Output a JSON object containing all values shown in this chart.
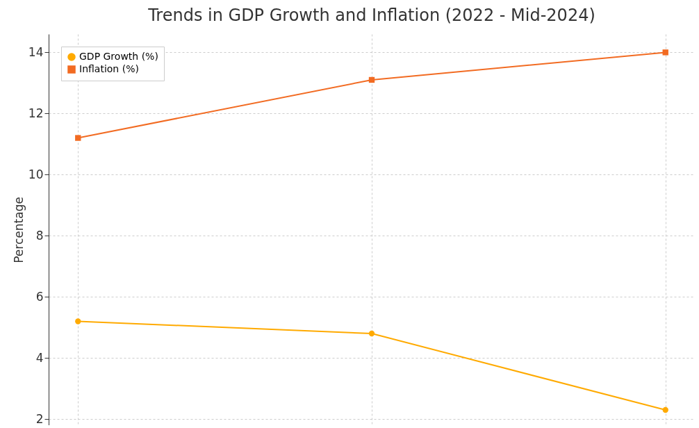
{
  "chart_data": {
    "type": "line",
    "title": "Trends in GDP Growth and Inflation (2022 - Mid-2024)",
    "ylabel": "Percentage",
    "categories": [
      null,
      null,
      null
    ],
    "series": [
      {
        "name": "GDP Growth (%)",
        "color": "#ffaa00",
        "marker": "circle",
        "values": [
          5.2,
          4.8,
          2.3
        ]
      },
      {
        "name": "Inflation (%)",
        "color": "#f26b22",
        "marker": "square",
        "values": [
          11.2,
          13.1,
          14.0
        ]
      }
    ],
    "ylim": [
      1.8,
      14.6
    ],
    "yticks": [
      2,
      4,
      6,
      8,
      10,
      12,
      14
    ],
    "grid": true,
    "legend": "top left",
    "tick_labels": "y",
    "line_style": "solid"
  }
}
